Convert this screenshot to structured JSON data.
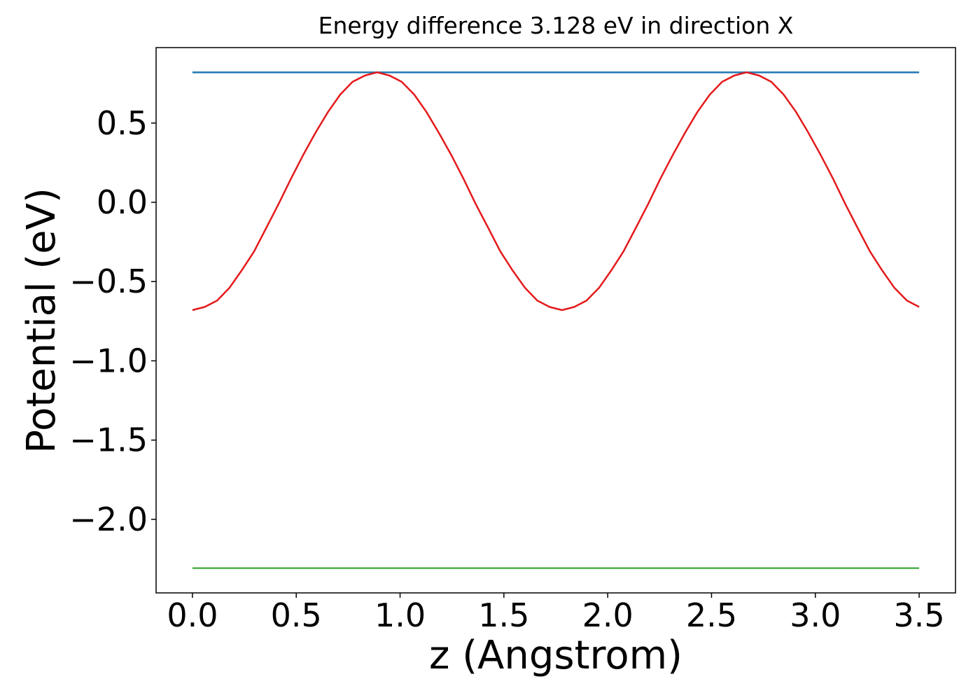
{
  "chart_data": {
    "type": "line",
    "title": "Energy difference 3.128 eV in direction X",
    "xlabel": "z (Angstrom)",
    "ylabel": "Potential (eV)",
    "xlim": [
      -0.175,
      3.675
    ],
    "ylim": [
      -2.464,
      0.976
    ],
    "xticks": [
      {
        "value": 0,
        "label": "0.0"
      },
      0.5,
      {
        "value": 1,
        "label": "1.0"
      },
      1.5,
      {
        "value": 2,
        "label": "2.0"
      },
      2.5,
      {
        "value": 3,
        "label": "3.0"
      },
      3.5
    ],
    "yticks": [
      {
        "value": -2,
        "label": "−2.0"
      },
      {
        "value": -1.5,
        "label": "−1.5"
      },
      {
        "value": -1,
        "label": "−1.0"
      },
      {
        "value": -0.5,
        "label": "−0.5"
      },
      {
        "value": 0,
        "label": "0.0"
      },
      0.5
    ],
    "series": [
      {
        "color": "#1f77b4",
        "x": [
          0,
          3.5
        ],
        "values": [
          0.82,
          0.82
        ]
      },
      {
        "color": "#4daf4a",
        "x": [
          0,
          3.5
        ],
        "values": [
          -2.308,
          -2.308
        ]
      },
      {
        "color": "#e41a1c",
        "x": [
          0,
          0.059,
          0.119,
          0.178,
          0.237,
          0.297,
          0.356,
          0.415,
          0.475,
          0.534,
          0.593,
          0.653,
          0.712,
          0.771,
          0.831,
          0.89,
          0.949,
          1.008,
          1.068,
          1.127,
          1.186,
          1.246,
          1.305,
          1.364,
          1.424,
          1.483,
          1.542,
          1.602,
          1.661,
          1.72,
          1.78,
          1.839,
          1.898,
          1.958,
          2.017,
          2.076,
          2.136,
          2.195,
          2.254,
          2.314,
          2.373,
          2.432,
          2.492,
          2.551,
          2.61,
          2.669,
          2.729,
          2.788,
          2.847,
          2.907,
          2.966,
          3.025,
          3.085,
          3.144,
          3.203,
          3.263,
          3.322,
          3.381,
          3.441,
          3.5
        ],
        "values": [
          -0.68,
          -0.66,
          -0.62,
          -0.54,
          -0.43,
          -0.31,
          -0.16,
          -0.01,
          0.15,
          0.3,
          0.44,
          0.57,
          0.68,
          0.76,
          0.8,
          0.82,
          0.8,
          0.76,
          0.68,
          0.57,
          0.44,
          0.3,
          0.15,
          -0.01,
          -0.16,
          -0.31,
          -0.43,
          -0.54,
          -0.62,
          -0.66,
          -0.68,
          -0.66,
          -0.62,
          -0.54,
          -0.43,
          -0.31,
          -0.16,
          -0.01,
          0.15,
          0.3,
          0.44,
          0.57,
          0.68,
          0.76,
          0.8,
          0.82,
          0.8,
          0.76,
          0.68,
          0.57,
          0.44,
          0.3,
          0.15,
          -0.01,
          -0.16,
          -0.31,
          -0.43,
          -0.54,
          -0.62,
          -0.66
        ]
      }
    ]
  }
}
